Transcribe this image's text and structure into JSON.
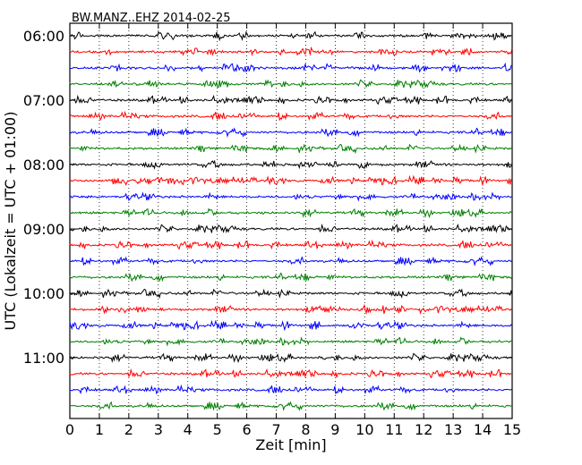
{
  "chart_data": {
    "type": "line",
    "title": "BW.MANZ..EHZ 2014-02-25",
    "xlabel": "Zeit  [min]",
    "ylabel": "UTC (Lokalzeit = UTC + 01:00)",
    "xlim": [
      0,
      15
    ],
    "x_ticks": [
      "0",
      "1",
      "2",
      "3",
      "4",
      "5",
      "6",
      "7",
      "8",
      "9",
      "10",
      "11",
      "12",
      "13",
      "14",
      "15"
    ],
    "y_tick_labels": [
      "06:00",
      "07:00",
      "08:00",
      "09:00",
      "10:00",
      "11:00"
    ],
    "y_tick_trace_index": [
      0,
      4,
      8,
      12,
      16,
      20
    ],
    "trace_count": 24,
    "trace_colors": [
      "#000000",
      "#ff0000",
      "#0000ff",
      "#008000"
    ],
    "grid": "vertical-dotted"
  }
}
